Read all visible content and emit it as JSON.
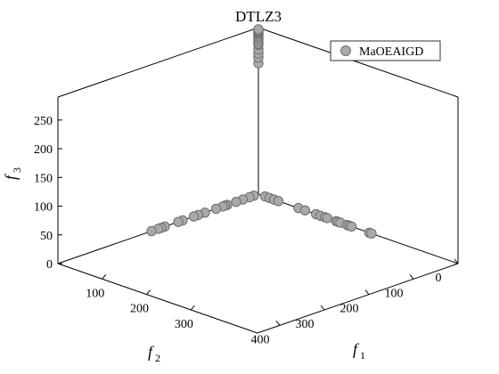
{
  "chart_data": {
    "type": "scatter",
    "title": "DTLZ3",
    "legend": {
      "placement": "top-right",
      "entries": [
        "MaOEAIGD"
      ]
    },
    "axes": {
      "x": {
        "symbol": "f",
        "subscript": "1",
        "range": [
          0,
          450
        ],
        "ticks": [
          "100",
          "200",
          "300"
        ]
      },
      "y": {
        "symbol": "f",
        "subscript": "2",
        "range": [
          0,
          450
        ],
        "ticks": [
          "0",
          "100",
          "200",
          "300",
          "400"
        ]
      },
      "z": {
        "symbol": "f",
        "subscript": "3",
        "range": [
          0,
          290
        ],
        "ticks": [
          "0",
          "50",
          "100",
          "150",
          "200",
          "250"
        ]
      }
    },
    "grid": false,
    "series": [
      {
        "name": "MaOEAIGD",
        "color": "#a9a9a9",
        "points": [
          [
            0,
            0,
            228
          ],
          [
            0,
            0,
            238
          ],
          [
            0,
            0,
            245
          ],
          [
            0,
            0,
            252
          ],
          [
            0,
            0,
            260
          ],
          [
            0,
            0,
            262
          ],
          [
            0,
            0,
            266
          ],
          [
            0,
            0,
            270
          ],
          [
            0,
            0,
            273
          ],
          [
            0,
            0,
            276
          ],
          [
            0,
            0,
            279
          ],
          [
            0,
            0,
            281
          ],
          [
            0,
            0,
            283
          ],
          [
            0,
            0,
            285
          ],
          [
            0,
            0,
            287
          ],
          [
            0,
            10,
            0
          ],
          [
            0,
            20,
            0
          ],
          [
            0,
            35,
            0
          ],
          [
            0,
            50,
            0
          ],
          [
            0,
            70,
            0
          ],
          [
            0,
            75,
            0
          ],
          [
            0,
            80,
            0
          ],
          [
            0,
            95,
            0
          ],
          [
            0,
            120,
            0
          ],
          [
            0,
            135,
            0
          ],
          [
            0,
            145,
            0
          ],
          [
            0,
            170,
            0
          ],
          [
            0,
            180,
            0
          ],
          [
            0,
            210,
            0
          ],
          [
            0,
            218,
            0
          ],
          [
            0,
            225,
            0
          ],
          [
            0,
            240,
            0
          ],
          [
            15,
            0,
            0
          ],
          [
            25,
            0,
            0
          ],
          [
            35,
            0,
            0
          ],
          [
            45,
            0,
            0
          ],
          [
            90,
            0,
            0
          ],
          [
            105,
            0,
            0
          ],
          [
            130,
            0,
            0
          ],
          [
            140,
            0,
            0
          ],
          [
            150,
            0,
            0
          ],
          [
            155,
            0,
            0
          ],
          [
            175,
            0,
            0
          ],
          [
            180,
            0,
            0
          ],
          [
            185,
            0,
            0
          ],
          [
            200,
            0,
            0
          ],
          [
            205,
            0,
            0
          ],
          [
            210,
            0,
            0
          ],
          [
            250,
            0,
            0
          ],
          [
            255,
            0,
            0
          ]
        ]
      }
    ]
  }
}
